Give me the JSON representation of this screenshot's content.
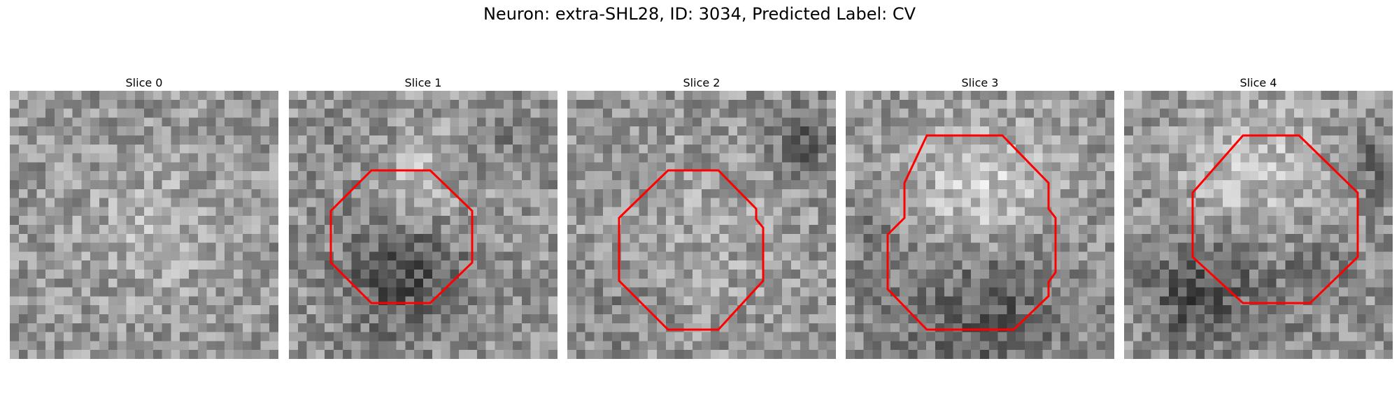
{
  "figure": {
    "title": "Neuron: extra-SHL28, ID: 3034, Predicted Label: CV",
    "outline_color": "#ff0000",
    "panels": [
      {
        "title": "Slice 0",
        "outline": null
      },
      {
        "title": "Slice 1",
        "outline": "octagon"
      },
      {
        "title": "Slice 2",
        "outline": "octagon"
      },
      {
        "title": "Slice 3",
        "outline": "octagon"
      },
      {
        "title": "Slice 4",
        "outline": "octagon"
      }
    ]
  }
}
